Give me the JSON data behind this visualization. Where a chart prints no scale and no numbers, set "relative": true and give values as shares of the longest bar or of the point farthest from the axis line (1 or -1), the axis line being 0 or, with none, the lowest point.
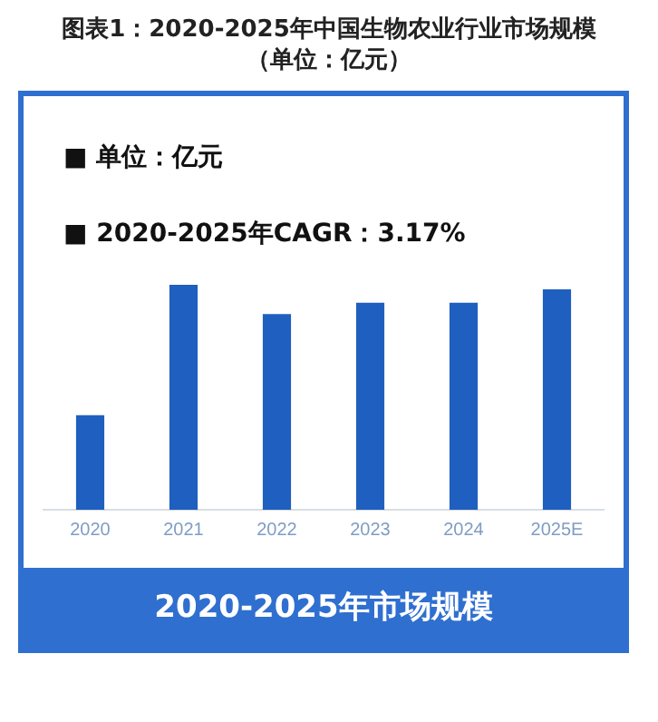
{
  "chart_data": {
    "type": "bar",
    "title": "图表1：2020-2025年中国生物农业行业市场规模（单位：亿元）",
    "xlabel": "2020-2025年市场规模",
    "annotations": [
      "■  单位：亿元",
      "■  2020-2025年CAGR：3.17%"
    ],
    "categories": [
      "2020",
      "2021",
      "2022",
      "2023",
      "2024",
      "2025E"
    ],
    "values": [
      0.42,
      1,
      0.87,
      0.92,
      0.92,
      0.98
    ],
    "color": "#1f5fbf",
    "relative": true,
    "grid": false,
    "legend": false
  }
}
